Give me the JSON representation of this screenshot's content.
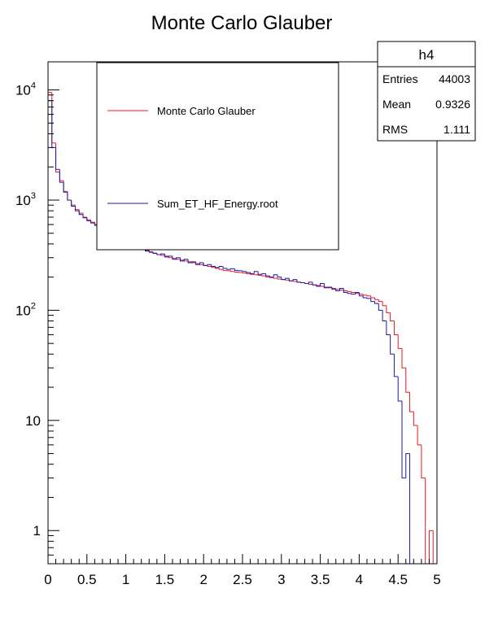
{
  "chart_data": {
    "type": "line",
    "title": "Monte Carlo Glauber",
    "xlabel": "",
    "ylabel": "",
    "xlim": [
      0,
      5
    ],
    "ylim": [
      0.5,
      18000
    ],
    "yscale": "log",
    "grid": false,
    "legend_placement": "top-center",
    "x_ticks": [
      {
        "value": 0,
        "label": "0"
      },
      {
        "value": 0.5,
        "label": "0.5"
      },
      {
        "value": 1,
        "label": "1"
      },
      {
        "value": 1.5,
        "label": "1.5"
      },
      {
        "value": 2,
        "label": "2"
      },
      {
        "value": 2.5,
        "label": "2.5"
      },
      {
        "value": 3,
        "label": "3"
      },
      {
        "value": 3.5,
        "label": "3.5"
      },
      {
        "value": 4,
        "label": "4"
      },
      {
        "value": 4.5,
        "label": "4.5"
      },
      {
        "value": 5,
        "label": "5"
      }
    ],
    "y_ticks": [
      {
        "value": 1,
        "base": "1",
        "exp": ""
      },
      {
        "value": 10,
        "base": "10",
        "exp": ""
      },
      {
        "value": 100,
        "base": "10",
        "exp": "2"
      },
      {
        "value": 1000,
        "base": "10",
        "exp": "3"
      },
      {
        "value": 10000,
        "base": "10",
        "exp": "4"
      }
    ],
    "bin_width": 0.05,
    "series": [
      {
        "name": "Monte Carlo Glauber",
        "color": "#e8191d",
        "values": [
          9500,
          3300,
          1800,
          1500,
          1200,
          1000,
          900,
          820,
          760,
          700,
          660,
          630,
          600,
          570,
          540,
          510,
          480,
          460,
          440,
          420,
          400,
          390,
          380,
          370,
          360,
          350,
          340,
          330,
          320,
          315,
          310,
          300,
          295,
          290,
          285,
          280,
          275,
          270,
          265,
          260,
          255,
          250,
          245,
          240,
          235,
          230,
          228,
          225,
          222,
          220,
          218,
          215,
          212,
          210,
          208,
          205,
          200,
          198,
          195,
          192,
          190,
          188,
          185,
          183,
          180,
          178,
          175,
          172,
          170,
          168,
          165,
          162,
          160,
          158,
          155,
          152,
          150,
          148,
          145,
          142,
          140,
          137,
          135,
          130,
          125,
          120,
          110,
          95,
          80,
          60,
          45,
          30,
          18,
          12,
          9,
          6,
          3,
          0,
          1,
          0
        ]
      },
      {
        "name": "Sum_ET_HF_Energy.root",
        "color": "#1a1aa6",
        "values": [
          8000,
          3000,
          1900,
          1450,
          1180,
          1000,
          880,
          800,
          740,
          690,
          650,
          620,
          590,
          560,
          530,
          500,
          475,
          455,
          435,
          415,
          398,
          386,
          374,
          364,
          354,
          345,
          336,
          328,
          320,
          325,
          305,
          310,
          290,
          300,
          280,
          290,
          270,
          275,
          260,
          270,
          255,
          260,
          250,
          245,
          250,
          240,
          235,
          238,
          230,
          228,
          225,
          220,
          215,
          225,
          212,
          215,
          205,
          200,
          210,
          200,
          190,
          195,
          185,
          190,
          180,
          178,
          175,
          180,
          170,
          165,
          175,
          160,
          162,
          155,
          150,
          158,
          145,
          142,
          140,
          145,
          135,
          130,
          128,
          120,
          115,
          100,
          80,
          60,
          40,
          25,
          15,
          3,
          5,
          0,
          0,
          0,
          0,
          0,
          0,
          0
        ]
      }
    ]
  },
  "stats": {
    "title": "h4",
    "rows": [
      {
        "label": "Entries",
        "value": "44003"
      },
      {
        "label": "Mean",
        "value": "0.9326"
      },
      {
        "label": "RMS",
        "value": "1.111"
      }
    ]
  }
}
